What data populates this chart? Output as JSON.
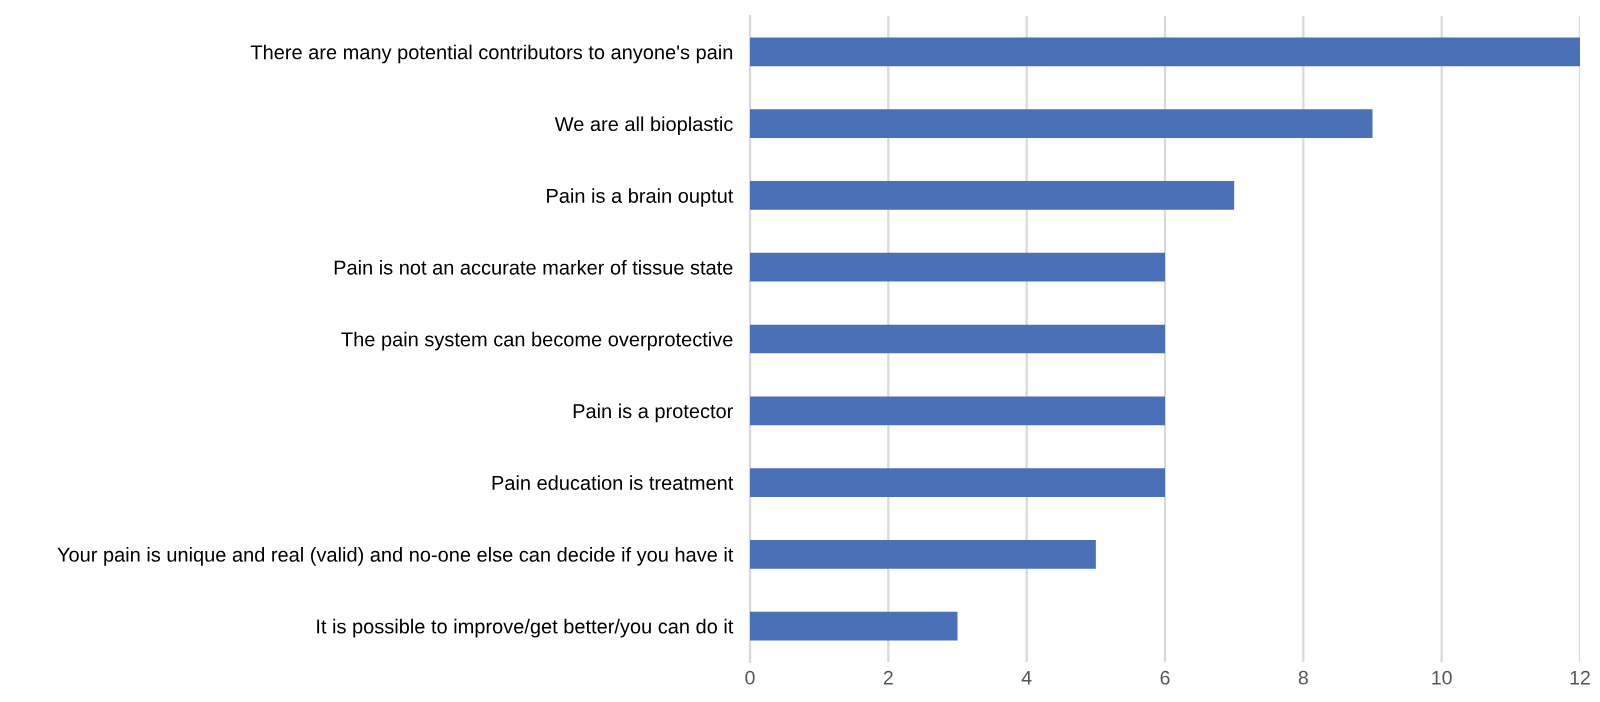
{
  "chart_data": {
    "type": "bar",
    "orientation": "horizontal",
    "categories": [
      "There are many potential contributors to anyone's pain",
      "We are all bioplastic",
      "Pain is a brain ouptut",
      "Pain is not an accurate marker of tissue state",
      "The pain system can become overprotective",
      "Pain is a protector",
      "Pain education is treatment",
      "Your pain is unique and real (valid) and no-one else can decide if you have it",
      "It is possible to improve/get better/you can do it"
    ],
    "values": [
      12,
      9,
      7,
      6,
      6,
      6,
      6,
      5,
      3
    ],
    "color": "#4a70b8",
    "xlim": [
      0,
      12
    ],
    "xticks": [
      0,
      2,
      4,
      6,
      8,
      10,
      12
    ],
    "grid": "x"
  }
}
